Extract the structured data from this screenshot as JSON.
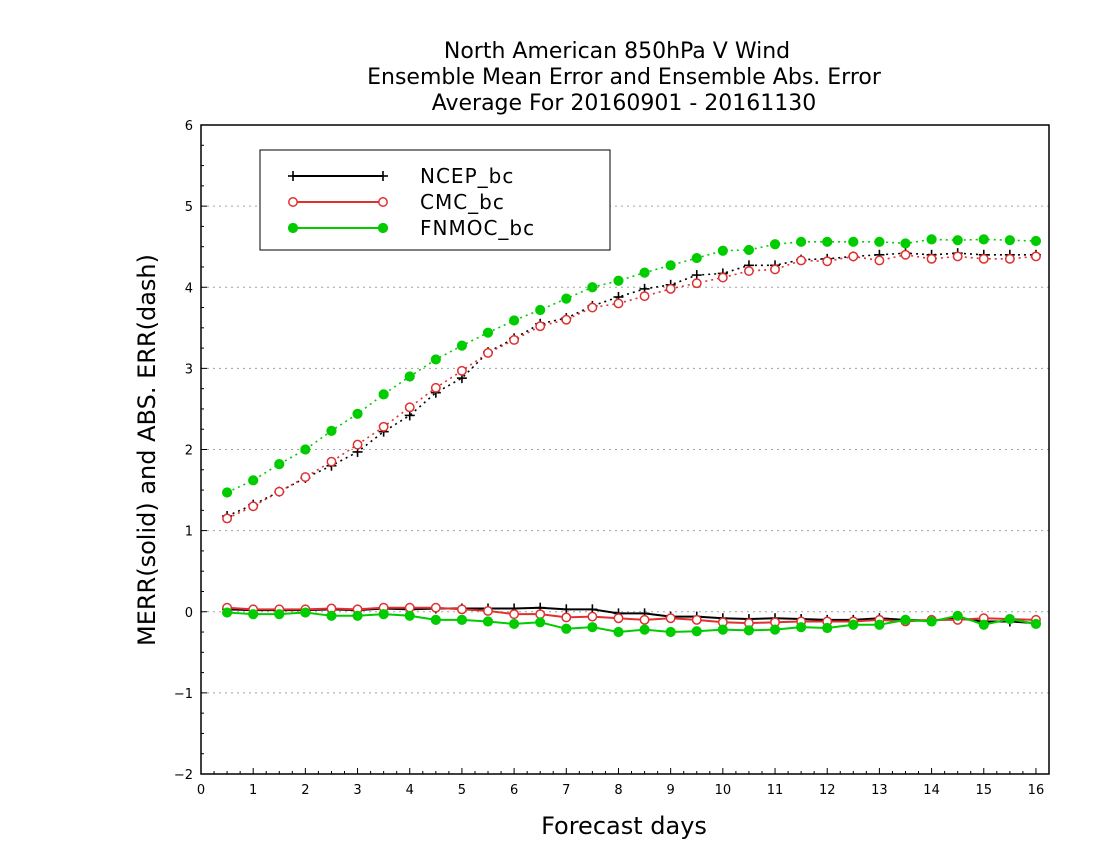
{
  "chart_data": {
    "type": "line",
    "title_lines": [
      "North American 850hPa V Wind",
      "Ensemble Mean Error and Ensemble Abs. Error",
      "Average For 20160901 - 20161130"
    ],
    "xlabel": "Forecast days",
    "ylabel": "MERR(solid) and ABS. ERR(dash)",
    "xlim": [
      0,
      16.25
    ],
    "ylim": [
      -2,
      6
    ],
    "x_ticks": [
      0,
      1,
      2,
      3,
      4,
      5,
      6,
      7,
      8,
      9,
      10,
      11,
      12,
      13,
      14,
      15,
      16
    ],
    "y_ticks": [
      -2,
      -1,
      0,
      1,
      2,
      3,
      4,
      5,
      6
    ],
    "grid": "horizontal dotted",
    "legend_position": "top-left",
    "x": [
      0.5,
      1,
      1.5,
      2,
      2.5,
      3,
      3.5,
      4,
      4.5,
      5,
      5.5,
      6,
      6.5,
      7,
      7.5,
      8,
      8.5,
      9,
      9.5,
      10,
      10.5,
      11,
      11.5,
      12,
      12.5,
      13,
      13.5,
      14,
      14.5,
      15,
      15.5,
      16
    ],
    "series": [
      {
        "name": "NCEP_bc",
        "color": "#000000",
        "marker": "plus",
        "abs_err": [
          1.18,
          1.32,
          1.48,
          1.65,
          1.8,
          1.97,
          2.22,
          2.42,
          2.7,
          2.88,
          3.2,
          3.37,
          3.55,
          3.62,
          3.77,
          3.88,
          3.98,
          4.03,
          4.15,
          4.17,
          4.27,
          4.27,
          4.34,
          4.35,
          4.38,
          4.4,
          4.42,
          4.4,
          4.42,
          4.4,
          4.4,
          4.4
        ],
        "mean_err": [
          0.03,
          0.02,
          0.02,
          0.02,
          0.03,
          0.02,
          0.04,
          0.03,
          0.04,
          0.04,
          0.04,
          0.04,
          0.05,
          0.03,
          0.03,
          -0.02,
          -0.02,
          -0.06,
          -0.06,
          -0.08,
          -0.09,
          -0.08,
          -0.09,
          -0.1,
          -0.1,
          -0.08,
          -0.1,
          -0.11,
          -0.08,
          -0.12,
          -0.12,
          -0.14
        ]
      },
      {
        "name": "CMC_bc",
        "color": "#e03030",
        "marker": "open-circle",
        "abs_err": [
          1.15,
          1.3,
          1.48,
          1.66,
          1.85,
          2.06,
          2.28,
          2.52,
          2.76,
          2.97,
          3.19,
          3.35,
          3.52,
          3.6,
          3.75,
          3.8,
          3.89,
          3.98,
          4.05,
          4.12,
          4.2,
          4.22,
          4.33,
          4.32,
          4.38,
          4.33,
          4.4,
          4.35,
          4.38,
          4.35,
          4.35,
          4.38
        ],
        "mean_err": [
          0.05,
          0.03,
          0.03,
          0.03,
          0.04,
          0.03,
          0.05,
          0.05,
          0.05,
          0.03,
          0.01,
          -0.03,
          -0.03,
          -0.07,
          -0.06,
          -0.08,
          -0.1,
          -0.08,
          -0.1,
          -0.13,
          -0.14,
          -0.13,
          -0.12,
          -0.12,
          -0.12,
          -0.1,
          -0.12,
          -0.1,
          -0.1,
          -0.08,
          -0.09,
          -0.1
        ]
      },
      {
        "name": "FNMOC_bc",
        "color": "#00cc00",
        "marker": "filled-circle",
        "abs_err": [
          1.47,
          1.62,
          1.82,
          2.0,
          2.23,
          2.44,
          2.68,
          2.9,
          3.11,
          3.28,
          3.44,
          3.59,
          3.72,
          3.86,
          4.0,
          4.08,
          4.18,
          4.27,
          4.36,
          4.45,
          4.46,
          4.53,
          4.56,
          4.56,
          4.56,
          4.56,
          4.54,
          4.59,
          4.58,
          4.59,
          4.58,
          4.57
        ],
        "mean_err": [
          -0.01,
          -0.03,
          -0.03,
          -0.01,
          -0.05,
          -0.05,
          -0.03,
          -0.05,
          -0.1,
          -0.1,
          -0.12,
          -0.15,
          -0.13,
          -0.21,
          -0.19,
          -0.25,
          -0.22,
          -0.25,
          -0.24,
          -0.22,
          -0.23,
          -0.22,
          -0.19,
          -0.2,
          -0.16,
          -0.16,
          -0.1,
          -0.12,
          -0.05,
          -0.16,
          -0.09,
          -0.15
        ]
      }
    ]
  }
}
